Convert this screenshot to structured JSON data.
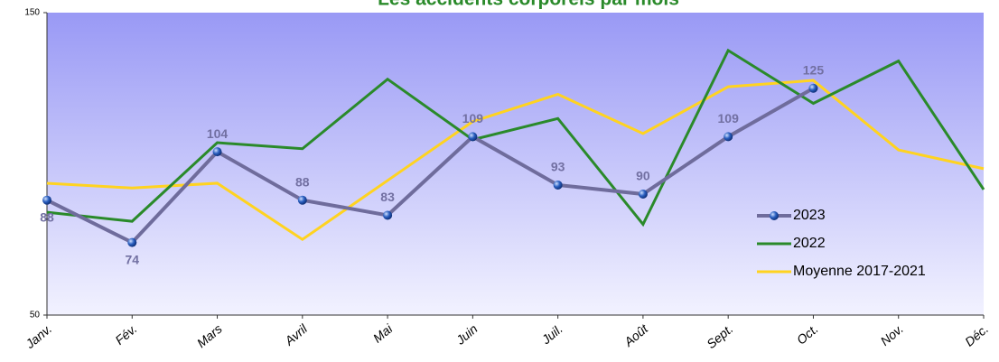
{
  "chart_data": {
    "type": "line",
    "title": "Les accidents corporels par mois",
    "categories": [
      "Janv.",
      "Fév.",
      "Mars",
      "Avril",
      "Mai",
      "Juin",
      "Juil.",
      "Août",
      "Sept.",
      "Oct.",
      "Nov.",
      "Déc."
    ],
    "series": [
      {
        "name": "2023",
        "color": "#6f6c9c",
        "values": [
          88,
          74,
          104,
          88,
          83,
          109,
          93,
          90,
          109,
          125,
          null,
          null
        ]
      },
      {
        "name": "2022",
        "color": "#2a8a2a",
        "values": [
          84,
          81,
          107,
          105,
          128,
          108,
          115,
          80,
          137.5,
          120,
          134,
          91.5
        ]
      },
      {
        "name": "Moyenne 2017-2021",
        "color": "#ffd320",
        "values": [
          93.6,
          92,
          93.6,
          75,
          94.5,
          114,
          123,
          110,
          125.5,
          127.6,
          104.6,
          98.4
        ]
      }
    ],
    "ylim": [
      50,
      150
    ],
    "yticks": [
      50,
      150
    ],
    "legend": "right"
  }
}
